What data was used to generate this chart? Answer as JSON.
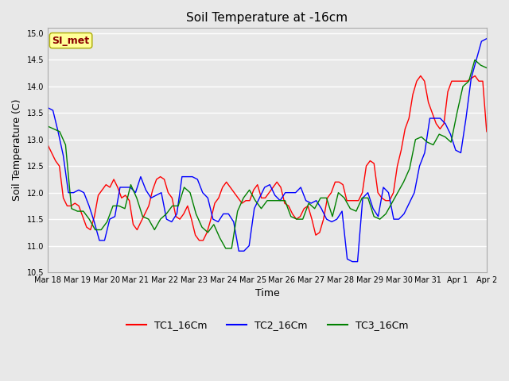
{
  "title": "Soil Temperature at -16cm",
  "xlabel": "Time",
  "ylabel": "Soil Temperature (C)",
  "ylim": [
    10.5,
    15.1
  ],
  "yticks": [
    10.5,
    11.0,
    11.5,
    12.0,
    12.5,
    13.0,
    13.5,
    14.0,
    14.5,
    15.0
  ],
  "bg_color": "#e8e8e8",
  "plot_bg_color": "#e8e8e8",
  "grid_color": "white",
  "annotation_text": "SI_met",
  "annotation_color": "#8b0000",
  "annotation_bg": "#ffff99",
  "line_colors": {
    "TC1_16Cm": "red",
    "TC2_16Cm": "blue",
    "TC3_16Cm": "green"
  },
  "x_labels": [
    "Mar 18",
    "Mar 19",
    "Mar 20",
    "Mar 21",
    "Mar 22",
    "Mar 23",
    "Mar 24",
    "Mar 25",
    "Mar 26",
    "Mar 27",
    "Mar 28",
    "Mar 29",
    "Mar 30",
    "Mar 31",
    "Apr 1",
    "Apr 2"
  ],
  "tc1": [
    12.9,
    12.75,
    12.6,
    12.5,
    11.9,
    11.75,
    11.75,
    11.8,
    11.75,
    11.55,
    11.35,
    11.3,
    11.55,
    11.95,
    12.05,
    12.15,
    12.1,
    12.25,
    12.1,
    11.9,
    11.95,
    11.85,
    11.4,
    11.3,
    11.45,
    11.6,
    11.75,
    12.05,
    12.25,
    12.3,
    12.25,
    12.0,
    11.9,
    11.55,
    11.5,
    11.6,
    11.75,
    11.5,
    11.2,
    11.1,
    11.1,
    11.25,
    11.5,
    11.8,
    11.9,
    12.1,
    12.2,
    12.1,
    12.0,
    11.9,
    11.8,
    11.85,
    11.85,
    12.05,
    12.15,
    11.9,
    11.9,
    12.0,
    12.1,
    12.2,
    12.1,
    11.8,
    11.75,
    11.6,
    11.5,
    11.55,
    11.7,
    11.75,
    11.5,
    11.2,
    11.25,
    11.5,
    11.9,
    12.0,
    12.2,
    12.2,
    12.15,
    11.85,
    11.85,
    11.85,
    11.85,
    12.0,
    12.5,
    12.6,
    12.55,
    12.0,
    11.9,
    11.85,
    11.85,
    12.0,
    12.5,
    12.8,
    13.2,
    13.4,
    13.85,
    14.1,
    14.2,
    14.1,
    13.7,
    13.5,
    13.3,
    13.2,
    13.3,
    13.9,
    14.1,
    14.1,
    14.1,
    14.1,
    14.1,
    14.15,
    14.2,
    14.1,
    14.1,
    13.15
  ],
  "tc2": [
    13.6,
    13.55,
    13.15,
    12.7,
    12.0,
    12.0,
    12.05,
    12.0,
    11.75,
    11.45,
    11.1,
    11.1,
    11.5,
    11.55,
    12.1,
    12.1,
    12.1,
    12.0,
    12.3,
    12.05,
    11.9,
    11.95,
    12.0,
    11.5,
    11.45,
    11.6,
    12.3,
    12.3,
    12.3,
    12.25,
    12.0,
    11.9,
    11.5,
    11.45,
    11.6,
    11.6,
    11.45,
    10.9,
    10.9,
    11.0,
    11.7,
    11.9,
    12.1,
    12.15,
    11.95,
    11.85,
    12.0,
    12.0,
    12.0,
    12.1,
    11.85,
    11.8,
    11.85,
    11.7,
    11.5,
    11.45,
    11.5,
    11.65,
    10.75,
    10.7,
    10.7,
    11.9,
    12.0,
    11.7,
    11.55,
    12.1,
    12.0,
    11.5,
    11.5,
    11.6,
    11.8,
    12.0,
    12.5,
    12.75,
    13.4,
    13.4,
    13.4,
    13.3,
    13.1,
    12.8,
    12.75,
    13.4,
    14.15,
    14.5,
    14.85,
    14.9
  ],
  "tc3": [
    13.25,
    13.2,
    13.15,
    12.9,
    11.7,
    11.65,
    11.65,
    11.5,
    11.3,
    11.3,
    11.45,
    11.75,
    11.75,
    11.7,
    12.15,
    11.9,
    11.55,
    11.5,
    11.3,
    11.5,
    11.6,
    11.75,
    11.75,
    12.1,
    12.0,
    11.6,
    11.35,
    11.25,
    11.4,
    11.15,
    10.95,
    10.95,
    11.65,
    11.9,
    12.05,
    11.85,
    11.7,
    11.85,
    11.85,
    11.85,
    11.85,
    11.55,
    11.5,
    11.5,
    11.8,
    11.7,
    11.9,
    11.9,
    11.55,
    12.0,
    11.9,
    11.7,
    11.65,
    11.9,
    11.9,
    11.55,
    11.5,
    11.6,
    11.8,
    12.0,
    12.2,
    12.45,
    13.0,
    13.05,
    12.95,
    12.9,
    13.1,
    13.05,
    12.95,
    13.5,
    14.0,
    14.1,
    14.5,
    14.4,
    14.35
  ]
}
